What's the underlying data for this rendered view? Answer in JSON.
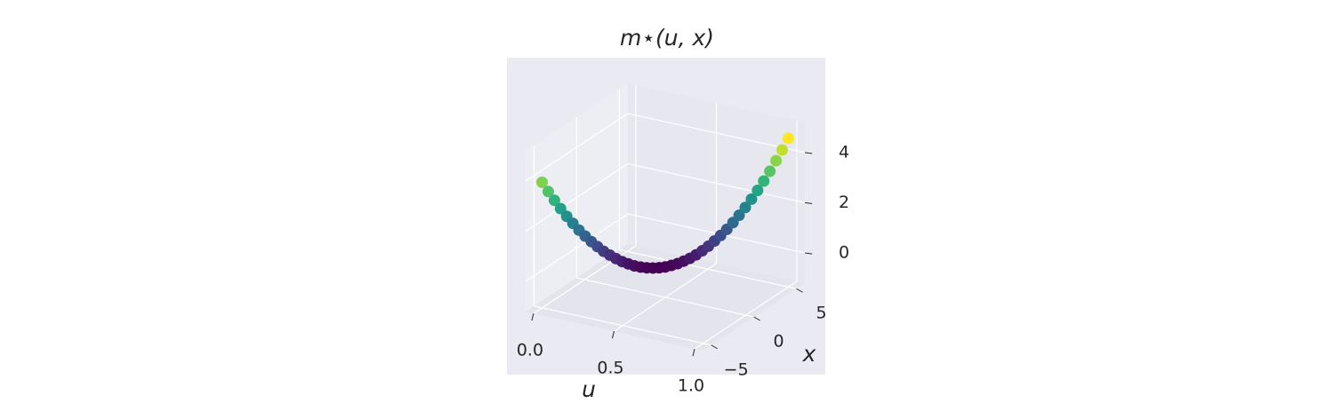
{
  "chart_data": {
    "type": "scatter3d",
    "title": "m⋆(u, x)",
    "u_label": "u",
    "x_label": "x",
    "colormap": "viridis",
    "u": [
      0,
      0.025,
      0.05,
      0.075,
      0.1,
      0.125,
      0.15,
      0.175,
      0.2,
      0.225,
      0.25,
      0.275,
      0.3,
      0.325,
      0.35,
      0.375,
      0.4,
      0.425,
      0.45,
      0.475,
      0.5,
      0.525,
      0.55,
      0.575,
      0.6,
      0.625,
      0.65,
      0.675,
      0.7,
      0.725,
      0.75,
      0.775,
      0.8,
      0.825,
      0.85,
      0.875,
      0.9,
      0.925,
      0.95,
      0.975,
      1
    ],
    "x": [
      -5,
      -4.75,
      -4.5,
      -4.25,
      -4,
      -3.75,
      -3.5,
      -3.25,
      -3,
      -2.75,
      -2.5,
      -2.25,
      -2,
      -1.75,
      -1.5,
      -1.25,
      -1,
      -0.75,
      -0.5,
      -0.25,
      0,
      0.25,
      0.5,
      0.75,
      1,
      1.25,
      1.5,
      1.75,
      2,
      2.25,
      2.5,
      2.75,
      3,
      3.25,
      3.5,
      3.75,
      4,
      4.25,
      4.5,
      4.75,
      5
    ],
    "values": [
      3.8,
      3.41,
      3.04,
      2.69,
      2.36,
      2.06,
      1.77,
      1.51,
      1.27,
      1.05,
      0.84,
      0.67,
      0.51,
      0.37,
      0.26,
      0.16,
      0.09,
      0.04,
      0.01,
      0.0,
      0.01,
      0.05,
      0.1,
      0.18,
      0.27,
      0.39,
      0.53,
      0.69,
      0.88,
      1.08,
      1.3,
      1.55,
      1.82,
      2.11,
      2.42,
      2.75,
      3.1,
      3.47,
      3.87,
      4.28,
      4.72
    ],
    "ulim": [
      -0.05,
      1.05
    ],
    "xlim": [
      -6,
      6
    ],
    "zlim": [
      -1.2,
      5.2
    ],
    "uticks": [
      {
        "value": 0,
        "label": "0.0"
      },
      0.5,
      {
        "value": 1,
        "label": "1.0"
      }
    ],
    "xticks": [
      {
        "value": -5,
        "label": "−5"
      },
      0,
      5
    ],
    "zticks": [
      0,
      2,
      4
    ],
    "grid": true
  }
}
